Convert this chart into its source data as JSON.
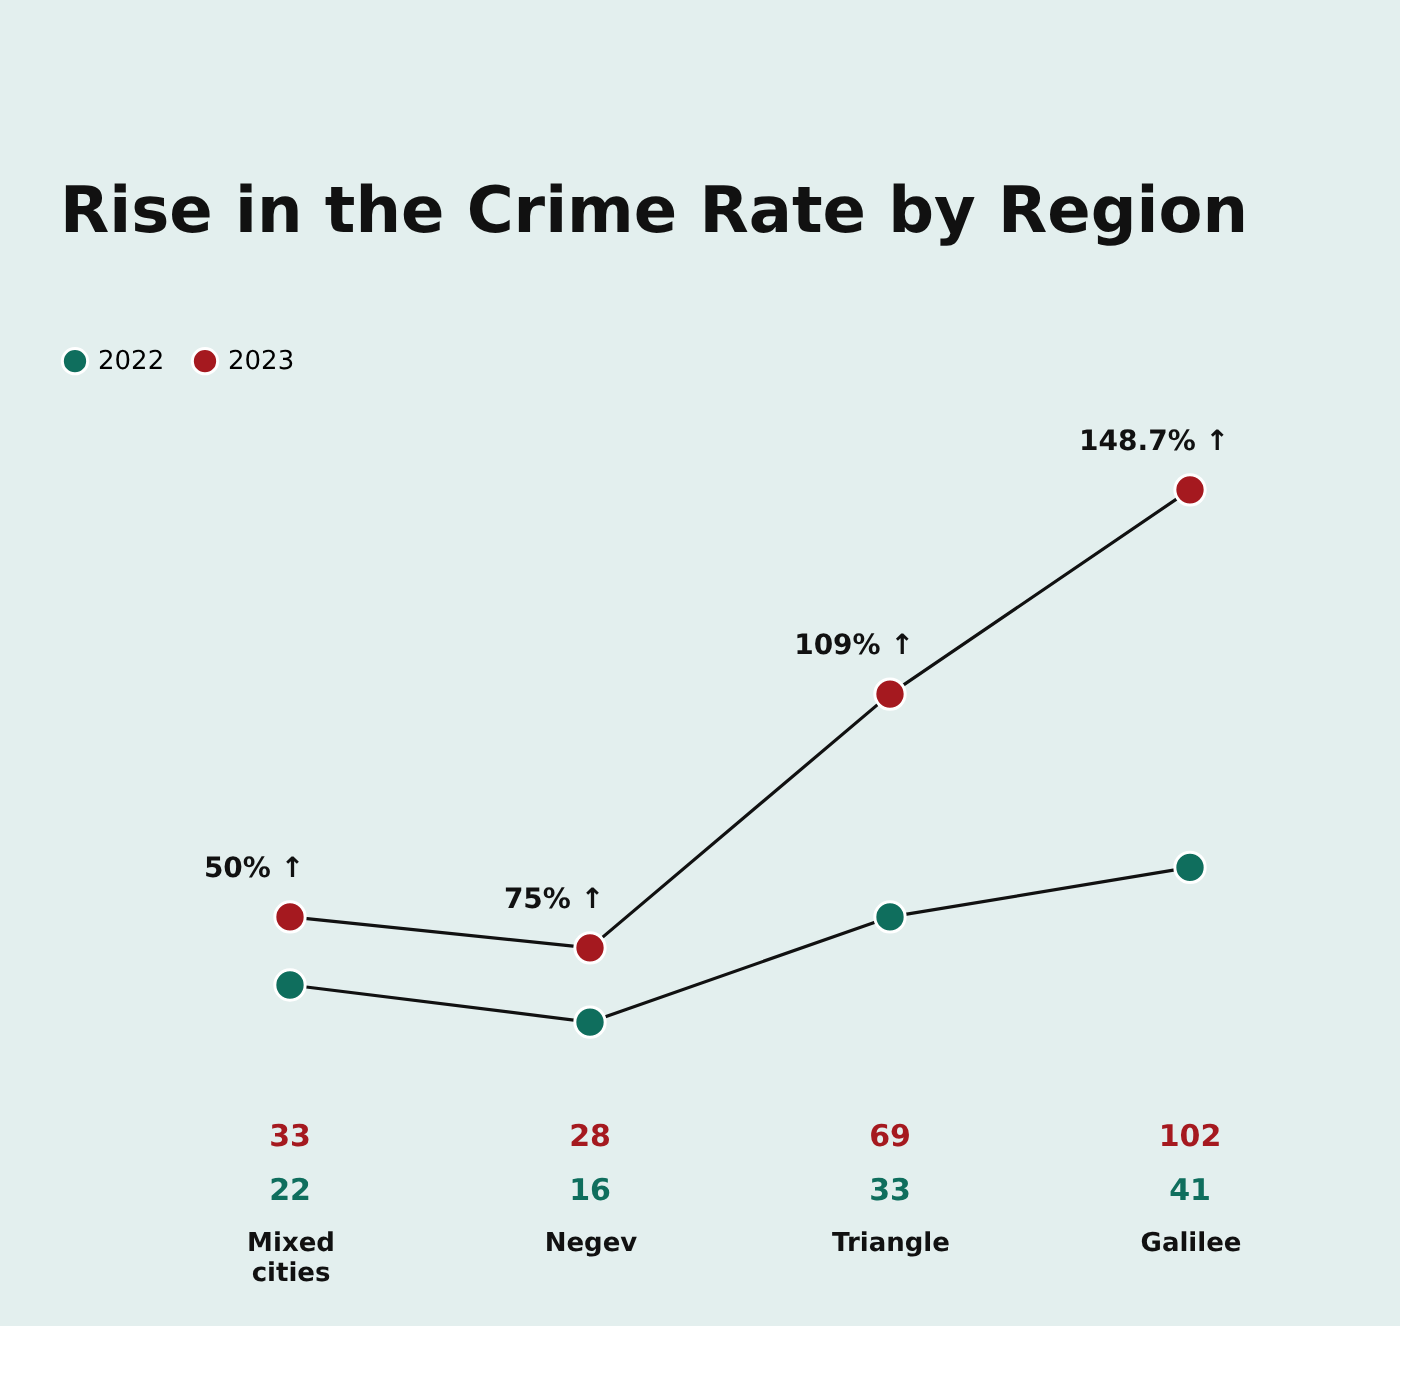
{
  "chart_data": {
    "type": "line",
    "title": "Rise in the Crime Rate by Region",
    "categories": [
      "Mixed cities",
      "Negev",
      "Triangle",
      "Galilee"
    ],
    "series": [
      {
        "name": "2022",
        "color": "#0f6e5d",
        "values": [
          22,
          16,
          33,
          41
        ]
      },
      {
        "name": "2023",
        "color": "#a5191f",
        "values": [
          33,
          28,
          69,
          102
        ]
      }
    ],
    "annotations": [
      {
        "text": "50% ↑",
        "x": "Mixed cities",
        "y": 33
      },
      {
        "text": "75% ↑",
        "x": "Negev",
        "y": 28
      },
      {
        "text": "109% ↑",
        "x": "Triangle",
        "y": 69
      },
      {
        "text": "148.7% ↑",
        "x": "Galilee",
        "y": 102
      }
    ],
    "data_labels": true,
    "marker": "circle",
    "line_style": "solid",
    "legend": "top left",
    "grid": false
  }
}
